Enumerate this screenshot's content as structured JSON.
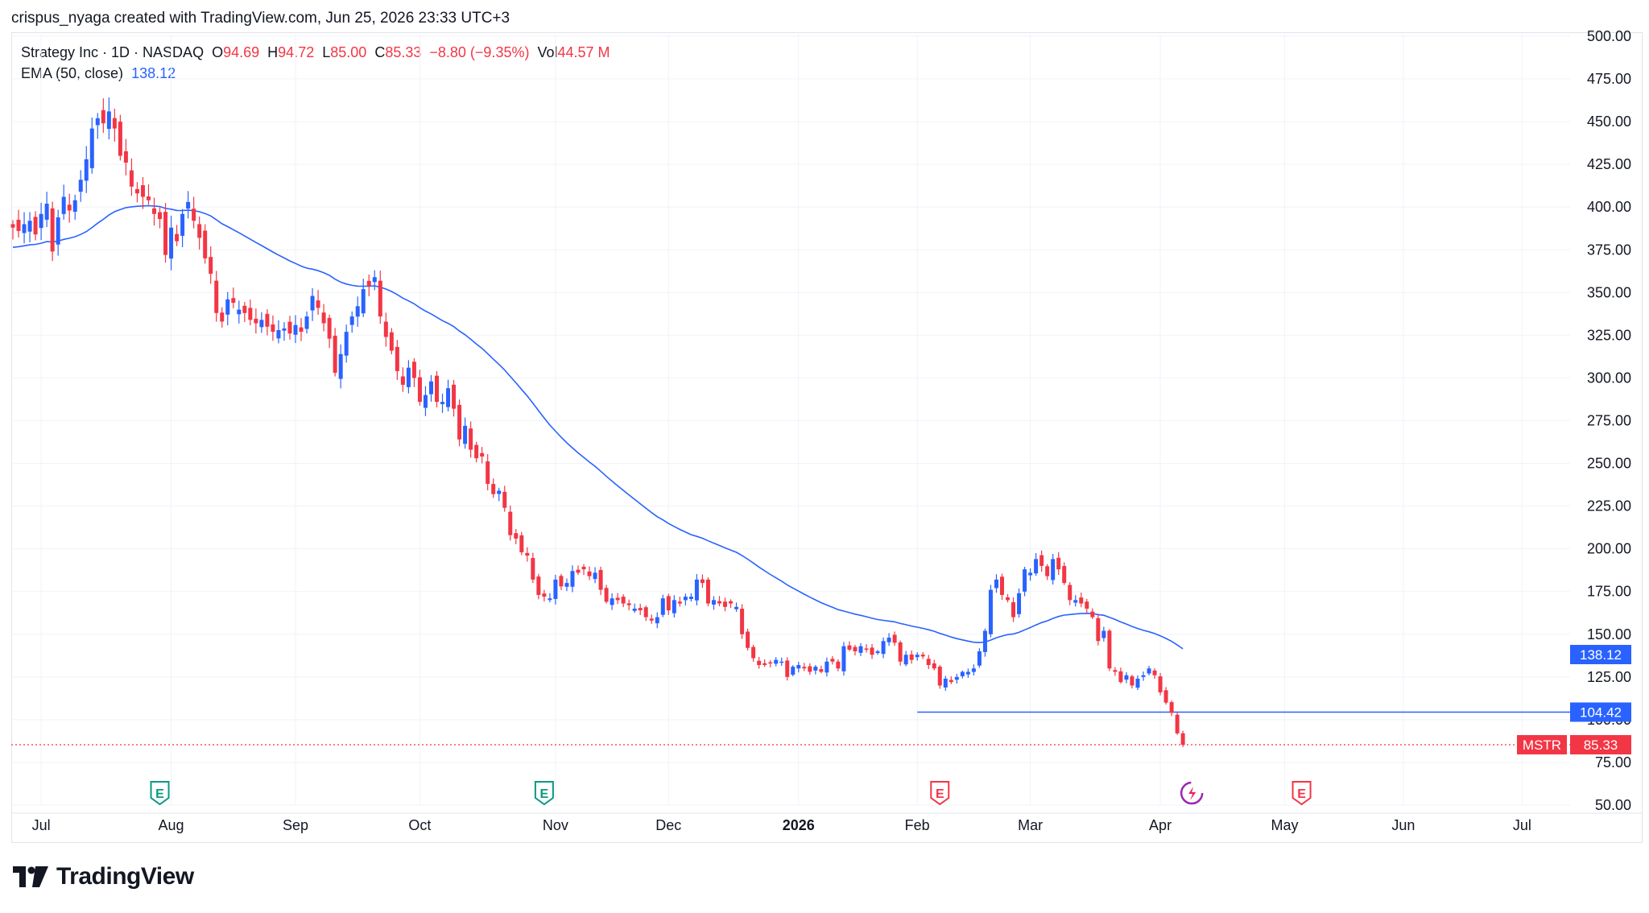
{
  "attribution": "crispus_nyaga created with TradingView.com, Jun 25, 2026 23:33 UTC+3",
  "legend": {
    "symbol_line": "Strategy Inc · 1D · NASDAQ",
    "o_label": "O",
    "o_value": "94.69",
    "h_label": "H",
    "h_value": "94.72",
    "l_label": "L",
    "l_value": "85.00",
    "c_label": "C",
    "c_value": "85.33",
    "change": "−8.80 (−9.35%)",
    "vol_label": "Vol",
    "vol_value": "44.57 M",
    "ema_label": "EMA (50, close)",
    "ema_value": "138.12"
  },
  "brand": "TradingView",
  "colors": {
    "up": "#2962ff",
    "down": "#f23645",
    "ema": "#2962ff",
    "hline": "#2962ff",
    "grid": "#f0f3fa",
    "axis_text": "#131722"
  },
  "chart_data": {
    "type": "candlestick",
    "symbol": "MSTR",
    "interval": "1D",
    "ylim": [
      50,
      500
    ],
    "y_ticks": [
      "500.00",
      "475.00",
      "450.00",
      "425.00",
      "400.00",
      "375.00",
      "350.00",
      "325.00",
      "300.00",
      "275.00",
      "250.00",
      "225.00",
      "200.00",
      "175.00",
      "150.00",
      "125.00",
      "100.00",
      "75.00",
      "50.00"
    ],
    "x_labels": [
      {
        "label": "Jul",
        "i": 5
      },
      {
        "label": "Aug",
        "i": 28
      },
      {
        "label": "Sep",
        "i": 50
      },
      {
        "label": "Oct",
        "i": 72
      },
      {
        "label": "Nov",
        "i": 96
      },
      {
        "label": "Dec",
        "i": 116
      },
      {
        "label": "2026",
        "i": 139,
        "bold": true
      },
      {
        "label": "Feb",
        "i": 160
      },
      {
        "label": "Mar",
        "i": 180
      },
      {
        "label": "Apr",
        "i": 203
      },
      {
        "label": "May",
        "i": 225
      },
      {
        "label": "Jun",
        "i": 246
      },
      {
        "label": "Jul",
        "i": 267
      }
    ],
    "earnings": [
      {
        "i": 26,
        "label": "E",
        "kind": "positive"
      },
      {
        "i": 94,
        "label": "E",
        "kind": "positive"
      },
      {
        "i": 164,
        "label": "E",
        "kind": "negative"
      },
      {
        "i": 228,
        "label": "E",
        "kind": "negative"
      }
    ],
    "price_labels": [
      {
        "text": "138.12",
        "value": 138.12,
        "color": "#2962ff"
      },
      {
        "text": "104.42",
        "value": 104.42,
        "color": "#2962ff"
      },
      {
        "symbol": "MSTR",
        "text": "85.33",
        "value": 85.33,
        "color": "#f23645"
      }
    ],
    "horizontal_line": {
      "value": 104.42,
      "from_i": 160,
      "to_i": 275
    },
    "last_price": 85.33,
    "closes": [
      388,
      386,
      390,
      392,
      384,
      396,
      402,
      374,
      394,
      406,
      398,
      404,
      416,
      428,
      446,
      452,
      449,
      456,
      446,
      430,
      426,
      412,
      408,
      406,
      404,
      396,
      393,
      372,
      388,
      380,
      396,
      403,
      392,
      382,
      370,
      361,
      338,
      333,
      346,
      344,
      340,
      338,
      334,
      332,
      334,
      330,
      327,
      328,
      329,
      326,
      331,
      327,
      336,
      348,
      341,
      332,
      323,
      303,
      314,
      327,
      336,
      342,
      352,
      354,
      359,
      336,
      324,
      316,
      304,
      296,
      306,
      300,
      286,
      290,
      298,
      286,
      286,
      294,
      282,
      264,
      272,
      258,
      253,
      254,
      238,
      232,
      234,
      224,
      208,
      206,
      198,
      196,
      182,
      173,
      172,
      171,
      182,
      178,
      180,
      187,
      186,
      188,
      184,
      186,
      176,
      169,
      171,
      170,
      168,
      167,
      165,
      164,
      160,
      158,
      160,
      171,
      164,
      170,
      168,
      172,
      172,
      182,
      180,
      168,
      170,
      168,
      166,
      168,
      166,
      150,
      142,
      136,
      132,
      132,
      133,
      135,
      134,
      125,
      131,
      132,
      130,
      128,
      131,
      128,
      134,
      134,
      130,
      143,
      141,
      140,
      143,
      141,
      138,
      140,
      146,
      148,
      145,
      134,
      138,
      135,
      138,
      137,
      132,
      130,
      120,
      124,
      122,
      125,
      128,
      128,
      130,
      140,
      152,
      176,
      182,
      173,
      170,
      160,
      174,
      188,
      186,
      194,
      190,
      184,
      194,
      188,
      180,
      170,
      170,
      168,
      165,
      160,
      146,
      152,
      130,
      128,
      122,
      126,
      120,
      124,
      126,
      130,
      126,
      116,
      110,
      104,
      92,
      85.33
    ]
  }
}
